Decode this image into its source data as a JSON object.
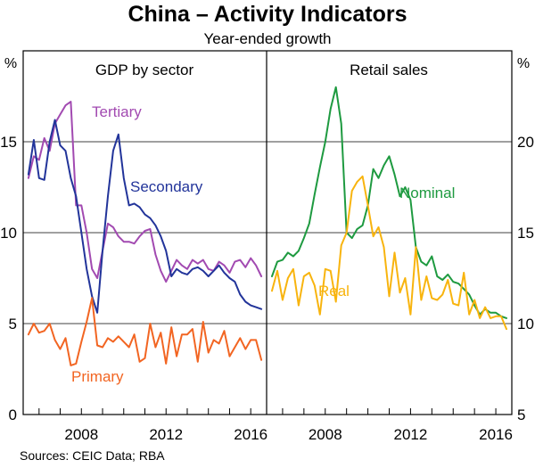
{
  "title": "China – Activity Indicators",
  "subtitle": "Year-ended growth",
  "source": "Sources:   CEIC Data; RBA",
  "colors": {
    "tertiary": "#a24ab1",
    "secondary": "#22349a",
    "primary": "#f26522",
    "nominal": "#1e9a40",
    "real": "#f8b40e",
    "frame": "#000000"
  },
  "chart_data": [
    {
      "type": "line",
      "panel_title": "GDP by sector",
      "ylabel": "%",
      "ylim": [
        0,
        20
      ],
      "yticks": [
        0,
        5,
        10,
        15
      ],
      "xlim": [
        2005.25,
        2016.75
      ],
      "xticks": [
        2008,
        2012,
        2016
      ],
      "xtick_labels": [
        "2008",
        "2012",
        "2016"
      ],
      "series": [
        {
          "name": "Tertiary",
          "color_key": "tertiary",
          "x": [
            2005.5,
            2005.75,
            2006.0,
            2006.25,
            2006.5,
            2006.75,
            2007.0,
            2007.25,
            2007.5,
            2007.75,
            2008.0,
            2008.25,
            2008.5,
            2008.75,
            2009.0,
            2009.25,
            2009.5,
            2009.75,
            2010.0,
            2010.25,
            2010.5,
            2010.75,
            2011.0,
            2011.25,
            2011.5,
            2011.75,
            2012.0,
            2012.25,
            2012.5,
            2012.75,
            2013.0,
            2013.25,
            2013.5,
            2013.75,
            2014.0,
            2014.25,
            2014.5,
            2014.75,
            2015.0,
            2015.25,
            2015.5,
            2015.75,
            2016.0,
            2016.25
          ],
          "values": [
            13.0,
            14.2,
            14.0,
            15.2,
            14.5,
            16.0,
            16.5,
            17.0,
            17.2,
            11.5,
            11.5,
            10.0,
            8.0,
            7.5,
            9.0,
            10.5,
            10.3,
            9.8,
            9.5,
            9.5,
            9.4,
            9.8,
            10.1,
            10.2,
            8.8,
            7.9,
            7.3,
            7.9,
            8.5,
            8.2,
            8.0,
            8.5,
            8.3,
            8.5,
            8.0,
            7.9,
            8.4,
            8.2,
            7.8,
            8.4,
            8.5,
            8.1,
            8.6,
            8.2
          ],
          "end_x": 2016.5,
          "end_value": 7.6
        },
        {
          "name": "Secondary",
          "color_key": "secondary",
          "x": [
            2005.5,
            2005.75,
            2006.0,
            2006.25,
            2006.5,
            2006.75,
            2007.0,
            2007.25,
            2007.5,
            2007.75,
            2008.0,
            2008.25,
            2008.5,
            2008.75,
            2009.0,
            2009.25,
            2009.5,
            2009.75,
            2010.0,
            2010.25,
            2010.5,
            2010.75,
            2011.0,
            2011.25,
            2011.5,
            2011.75,
            2012.0,
            2012.25,
            2012.5,
            2012.75,
            2013.0,
            2013.25,
            2013.5,
            2013.75,
            2014.0,
            2014.25,
            2014.5,
            2014.75,
            2015.0,
            2015.25,
            2015.5,
            2015.75,
            2016.0,
            2016.25
          ],
          "values": [
            13.2,
            15.1,
            13.0,
            12.9,
            15.0,
            16.2,
            14.8,
            14.5,
            13.0,
            12.0,
            10.0,
            8.0,
            6.5,
            5.6,
            9.0,
            12.0,
            14.5,
            15.4,
            13.0,
            11.5,
            11.6,
            11.4,
            11.0,
            10.8,
            10.4,
            9.8,
            9.0,
            7.6,
            8.0,
            7.8,
            7.7,
            8.0,
            8.1,
            7.9,
            7.6,
            7.9,
            8.2,
            7.8,
            7.5,
            7.3,
            6.6,
            6.2,
            6.0,
            5.9
          ],
          "end_x": 2016.5,
          "end_value": 5.8
        },
        {
          "name": "Primary",
          "color_key": "primary",
          "x": [
            2005.5,
            2005.75,
            2006.0,
            2006.25,
            2006.5,
            2006.75,
            2007.0,
            2007.25,
            2007.5,
            2007.75,
            2008.0,
            2008.25,
            2008.5,
            2008.75,
            2009.0,
            2009.25,
            2009.5,
            2009.75,
            2010.0,
            2010.25,
            2010.5,
            2010.75,
            2011.0,
            2011.25,
            2011.5,
            2011.75,
            2012.0,
            2012.25,
            2012.5,
            2012.75,
            2013.0,
            2013.25,
            2013.5,
            2013.75,
            2014.0,
            2014.25,
            2014.5,
            2014.75,
            2015.0,
            2015.25,
            2015.5,
            2015.75,
            2016.0,
            2016.25
          ],
          "values": [
            4.4,
            5.0,
            4.5,
            4.6,
            5.0,
            4.1,
            3.6,
            4.2,
            2.7,
            2.8,
            4.0,
            5.1,
            6.4,
            3.8,
            3.7,
            4.2,
            4.0,
            4.3,
            4.0,
            3.7,
            4.4,
            2.9,
            3.1,
            5.0,
            3.7,
            4.5,
            2.8,
            4.8,
            3.2,
            4.4,
            4.4,
            4.7,
            2.9,
            5.1,
            3.4,
            4.1,
            3.9,
            4.6,
            3.2,
            3.7,
            4.2,
            3.6,
            4.1,
            4.1
          ],
          "end_x": 2016.5,
          "end_value": 3.0
        }
      ]
    },
    {
      "type": "line",
      "panel_title": "Retail sales",
      "ylabel": "%",
      "ylim": [
        5,
        25
      ],
      "yticks": [
        5,
        10,
        15,
        20
      ],
      "xlim": [
        2005.25,
        2016.75
      ],
      "xticks": [
        2008,
        2012,
        2016
      ],
      "xtick_labels": [
        "2008",
        "2012",
        "2016"
      ],
      "series": [
        {
          "name": "Nominal",
          "color_key": "nominal",
          "x": [
            2005.5,
            2005.75,
            2006.0,
            2006.25,
            2006.5,
            2006.75,
            2007.0,
            2007.25,
            2007.5,
            2007.75,
            2008.0,
            2008.25,
            2008.5,
            2008.75,
            2009.0,
            2009.25,
            2009.5,
            2009.75,
            2010.0,
            2010.25,
            2010.5,
            2010.75,
            2011.0,
            2011.25,
            2011.5,
            2011.75,
            2012.0,
            2012.25,
            2012.5,
            2012.75,
            2013.0,
            2013.25,
            2013.5,
            2013.75,
            2014.0,
            2014.25,
            2014.5,
            2014.75,
            2015.0,
            2015.25,
            2015.5,
            2015.75,
            2016.0,
            2016.25
          ],
          "values": [
            12.6,
            13.4,
            13.5,
            13.9,
            13.7,
            14.0,
            14.7,
            15.5,
            17.1,
            18.6,
            20.0,
            21.8,
            23.0,
            21.0,
            15.0,
            14.7,
            15.2,
            15.4,
            16.5,
            18.5,
            18.0,
            18.7,
            19.2,
            18.2,
            17.0,
            17.5,
            16.8,
            14.2,
            13.4,
            13.2,
            13.7,
            12.6,
            12.4,
            12.7,
            12.3,
            12.2,
            11.9,
            11.6,
            11.0,
            10.5,
            10.8,
            10.6,
            10.6,
            10.4
          ],
          "end_x": 2016.5,
          "end_value": 10.3
        },
        {
          "name": "Real",
          "color_key": "real",
          "x": [
            2005.5,
            2005.75,
            2006.0,
            2006.25,
            2006.5,
            2006.75,
            2007.0,
            2007.25,
            2007.5,
            2007.75,
            2008.0,
            2008.25,
            2008.5,
            2008.75,
            2009.0,
            2009.25,
            2009.5,
            2009.75,
            2010.0,
            2010.25,
            2010.5,
            2010.75,
            2011.0,
            2011.25,
            2011.5,
            2011.75,
            2012.0,
            2012.25,
            2012.5,
            2012.75,
            2013.0,
            2013.25,
            2013.5,
            2013.75,
            2014.0,
            2014.25,
            2014.5,
            2014.75,
            2015.0,
            2015.25,
            2015.5,
            2015.75,
            2016.0,
            2016.25
          ],
          "values": [
            11.8,
            12.9,
            11.3,
            12.5,
            13.0,
            11.0,
            12.6,
            12.8,
            12.1,
            10.5,
            13.0,
            12.9,
            11.2,
            14.3,
            15.0,
            17.3,
            17.8,
            18.1,
            16.5,
            14.8,
            15.3,
            14.2,
            11.5,
            13.9,
            11.7,
            12.5,
            10.5,
            14.2,
            11.3,
            12.6,
            11.4,
            11.3,
            11.6,
            12.4,
            11.1,
            11.0,
            12.8,
            10.5,
            11.3,
            10.3,
            10.9,
            10.3,
            10.4,
            10.4
          ],
          "end_x": 2016.5,
          "end_value": 9.7
        }
      ]
    }
  ]
}
